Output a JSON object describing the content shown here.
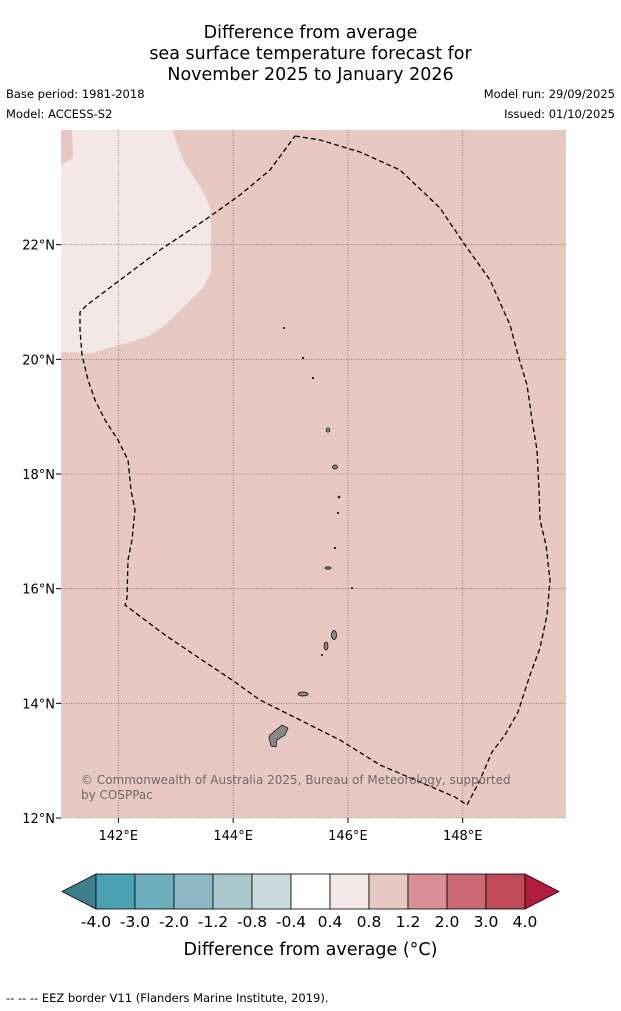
{
  "chart_data": {
    "type": "heatmap",
    "title": [
      "Difference from average",
      "sea surface temperature forecast for",
      "November 2025 to January 2026"
    ],
    "base_period": "Base period: 1981-2018",
    "model": "Model: ACCESS-S2",
    "model_run": "Model run: 29/09/2025",
    "issued": "Issued: 01/10/2025",
    "xlim": [
      141.0,
      149.8
    ],
    "ylim": [
      12.0,
      24.0
    ],
    "xticks": [
      142,
      144,
      146,
      148
    ],
    "xtick_labels": [
      "142°E",
      "144°E",
      "146°E",
      "148°E"
    ],
    "yticks": [
      12,
      14,
      16,
      18,
      20,
      22
    ],
    "ytick_labels": [
      "12°N",
      "14°N",
      "16°N",
      "18°N",
      "20°N",
      "22°N"
    ],
    "regions": [
      {
        "name": "main",
        "value_range": "0.8 to 1.2"
      },
      {
        "name": "northwest",
        "value_range": "0.4 to 0.8"
      }
    ],
    "colorbar": {
      "label": "Difference from average (°C)",
      "ticks": [
        "-4.0",
        "-3.0",
        "-2.0",
        "-1.2",
        "-0.8",
        "-0.4",
        "0.4",
        "0.8",
        "1.2",
        "2.0",
        "3.0",
        "4.0"
      ],
      "colors": [
        "#4ba1b1",
        "#6bafbc",
        "#8cb9c4",
        "#abc9cd",
        "#cadadd",
        "#ffffff",
        "#f4e8e6",
        "#e8c8c3",
        "#d88f96",
        "#cb6873",
        "#c04a57"
      ],
      "under_color": "#3b808b",
      "over_color": "#b01e3b"
    },
    "copyright": "© Commonwealth of Australia 2025, Bureau of Meteorology, supported by COSPPac",
    "legend_note": "-- -- -- EEZ border V11 (Flanders Marine Institute, 2019)."
  }
}
